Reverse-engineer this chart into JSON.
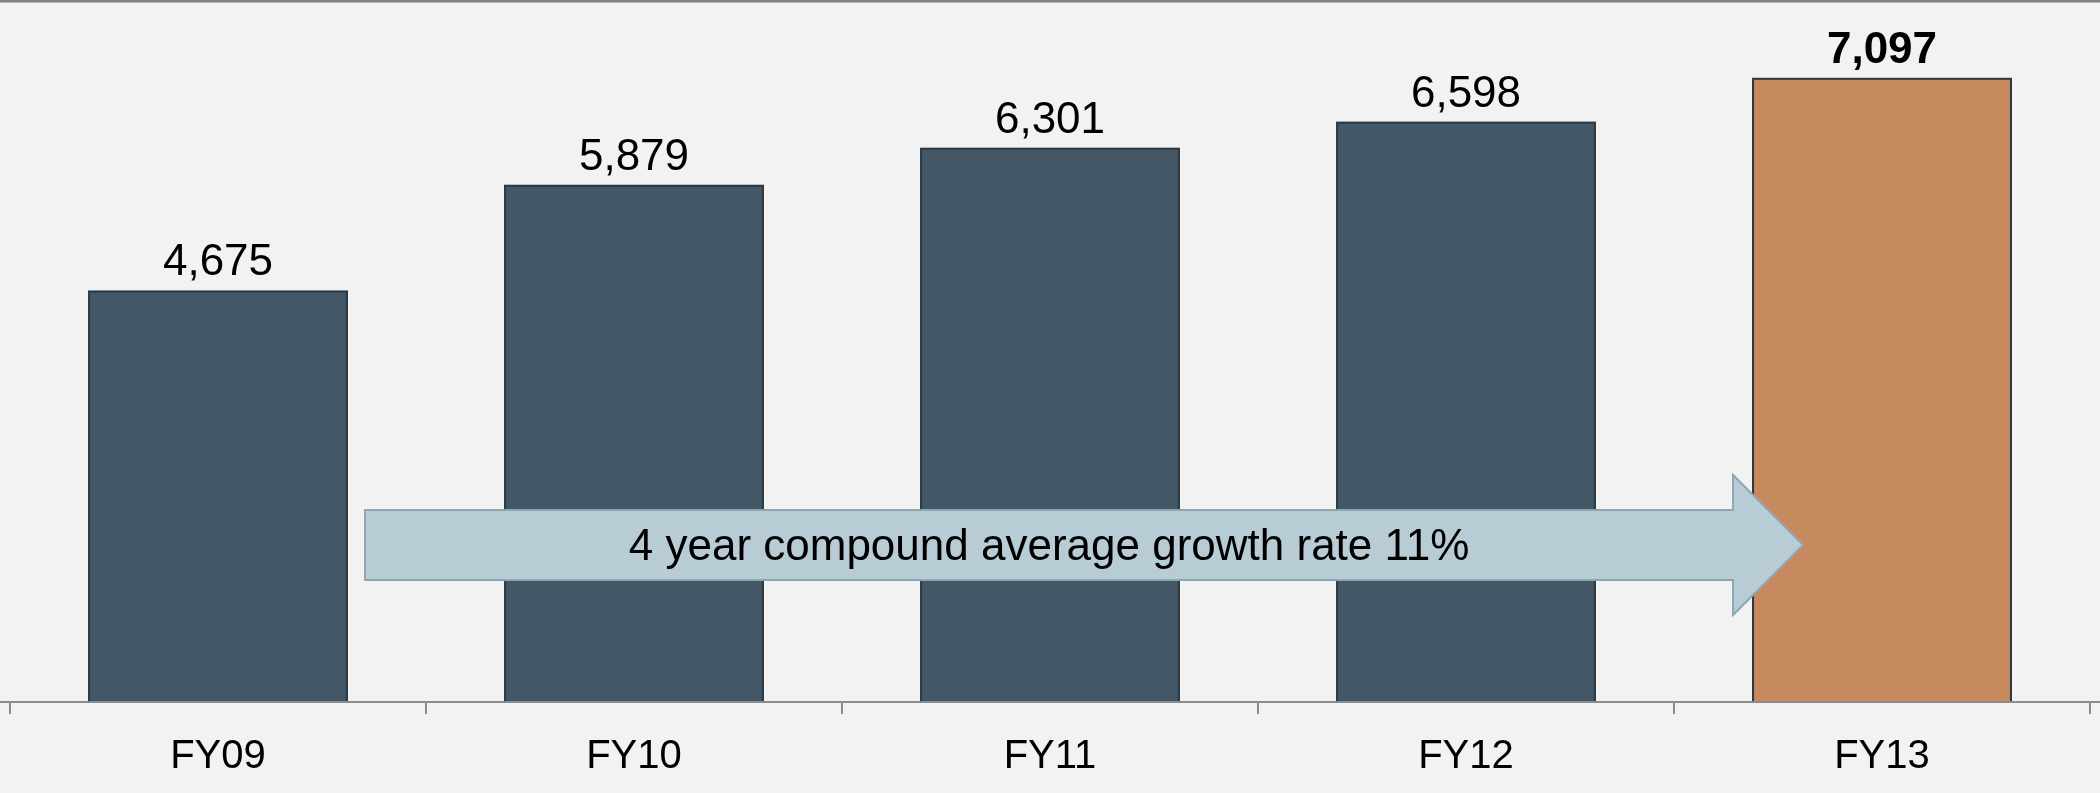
{
  "chart_data": {
    "type": "bar",
    "categories": [
      "FY09",
      "FY10",
      "FY11",
      "FY12",
      "FY13"
    ],
    "values": [
      4675,
      5879,
      6301,
      6598,
      7097
    ],
    "colors": [
      "#435766",
      "#435766",
      "#435766",
      "#435766",
      "#c68a5e"
    ],
    "value_labels": [
      "4,675",
      "5,879",
      "6,301",
      "6,598",
      "7,097"
    ],
    "annotations": [
      "4 year compound average growth rate 11%"
    ]
  }
}
